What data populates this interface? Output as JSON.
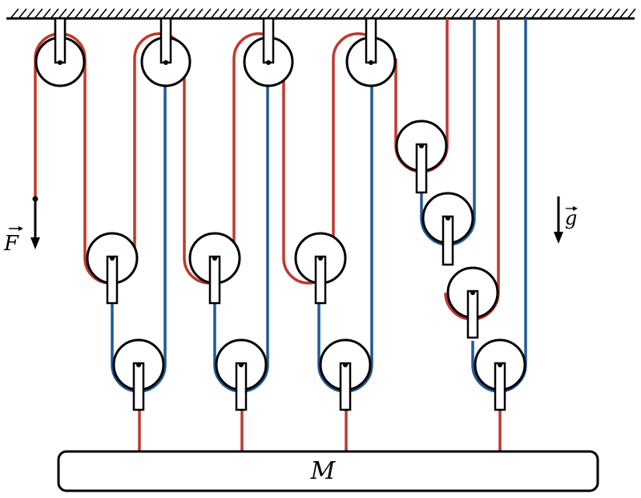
{
  "labels": {
    "force": "F",
    "gravity": "g",
    "mass": "M"
  },
  "colors": {
    "rope_red": "#c0392b",
    "rope_blue": "#1f5a96",
    "outline": "#000000",
    "fill": "#ffffff"
  }
}
